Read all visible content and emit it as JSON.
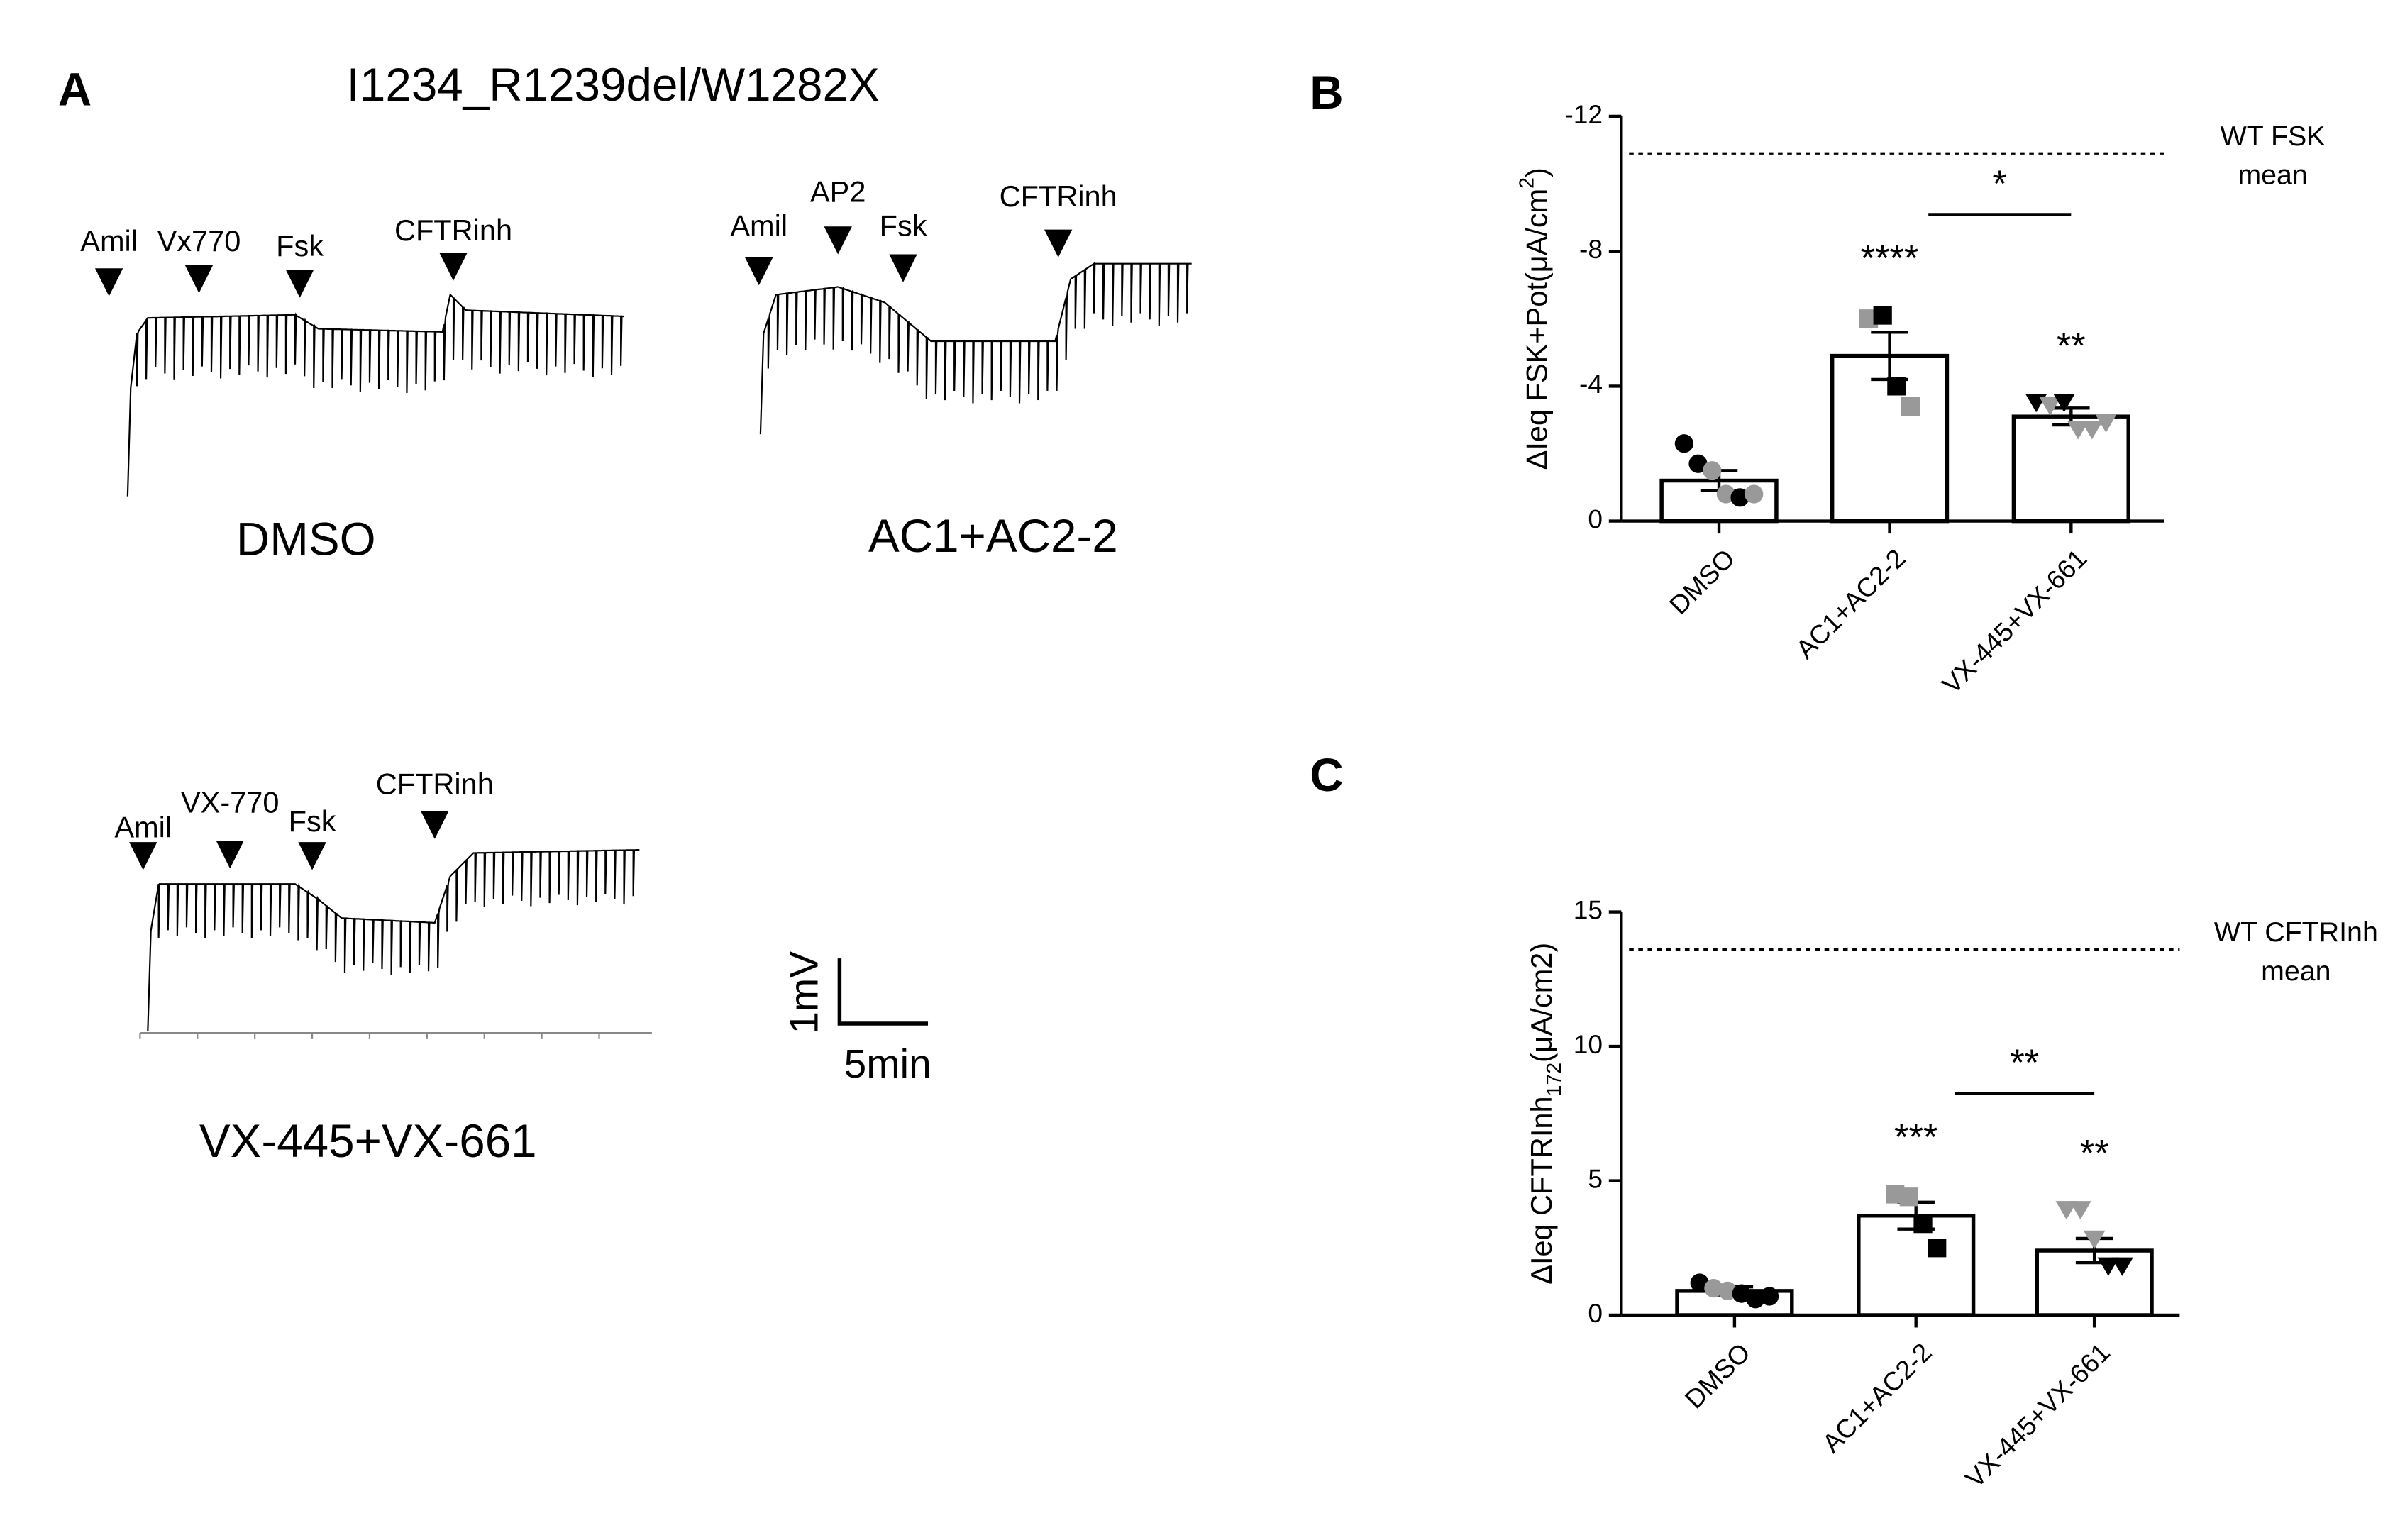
{
  "panel_a": {
    "label": "A",
    "title": "I1234_R1239del/W1282X",
    "traces": [
      {
        "condition": "DMSO",
        "markers": [
          "Amil",
          "Vx770",
          "Fsk",
          "CFTRinh"
        ]
      },
      {
        "condition": "AC1+AC2-2",
        "markers": [
          "Amil",
          "AP2",
          "Fsk",
          "CFTRinh"
        ]
      },
      {
        "condition": "VX-445+VX-661",
        "markers": [
          "Amil",
          "VX-770",
          "Fsk",
          "CFTRinh"
        ]
      }
    ],
    "scale_bar": {
      "vertical": "1mV",
      "horizontal": "5min"
    }
  },
  "chart_data": [
    {
      "type": "bar",
      "panel_label": "B",
      "y_label": {
        "text": "ΔIeq FSK+Pot(μA/cm",
        "sup": "2",
        "end": ")"
      },
      "categories": [
        "DMSO",
        "AC1+AC2-2",
        "VX-445+VX-661"
      ],
      "values": [
        -1.2,
        -4.9,
        -3.1
      ],
      "errors": [
        0.3,
        0.7,
        0.25
      ],
      "points": [
        [
          -2.3,
          -1.7,
          -1.5,
          -0.8,
          -0.7,
          -0.8
        ],
        [
          -6.0,
          -6.1,
          -4.0,
          -3.4
        ],
        [
          -3.5,
          -3.4,
          -3.5,
          -2.7,
          -2.7,
          -2.9
        ]
      ],
      "point_colors": [
        [
          "#000",
          "#000",
          "#999",
          "#999",
          "#000",
          "#999"
        ],
        [
          "#999",
          "#000",
          "#000",
          "#999"
        ],
        [
          "#000",
          "#999",
          "#000",
          "#999",
          "#999",
          "#999"
        ]
      ],
      "markers": [
        "circle",
        "square",
        "triangle"
      ],
      "ylim": [
        0,
        -12
      ],
      "yticks": [
        0,
        -4,
        -8,
        -12
      ],
      "reference": {
        "value": -10.9,
        "label": [
          "WT FSK",
          "mean"
        ]
      },
      "significance": [
        {
          "category": 1,
          "text": "****"
        },
        {
          "category": 2,
          "text": "**"
        }
      ],
      "comparison": {
        "categories": [
          1,
          2
        ],
        "text": "*"
      }
    },
    {
      "type": "bar",
      "panel_label": "C",
      "y_label": {
        "text": "ΔIeq CFTRInh",
        "sub": "172",
        "end": "(μA/cm2)"
      },
      "categories": [
        "DMSO",
        "AC1+AC2-2",
        "VX-445+VX-661"
      ],
      "values": [
        0.9,
        3.7,
        2.4
      ],
      "errors": [
        0.15,
        0.5,
        0.45
      ],
      "points": [
        [
          1.2,
          1.0,
          0.9,
          0.8,
          0.6,
          0.7
        ],
        [
          4.5,
          4.4,
          3.4,
          2.5
        ],
        [
          3.9,
          3.9,
          2.8,
          1.8,
          1.8
        ]
      ],
      "point_colors": [
        [
          "#000",
          "#999",
          "#999",
          "#000",
          "#000",
          "#000"
        ],
        [
          "#999",
          "#999",
          "#000",
          "#000"
        ],
        [
          "#999",
          "#999",
          "#999",
          "#000",
          "#000"
        ]
      ],
      "markers": [
        "circle",
        "square",
        "triangle"
      ],
      "ylim": [
        0,
        15
      ],
      "yticks": [
        0,
        5,
        10,
        15
      ],
      "reference": {
        "value": 13.6,
        "label": [
          "WT CFTRInh",
          "mean"
        ]
      },
      "significance": [
        {
          "category": 1,
          "text": "***"
        },
        {
          "category": 2,
          "text": "**"
        }
      ],
      "comparison": {
        "categories": [
          1,
          2
        ],
        "text": "**"
      }
    }
  ]
}
